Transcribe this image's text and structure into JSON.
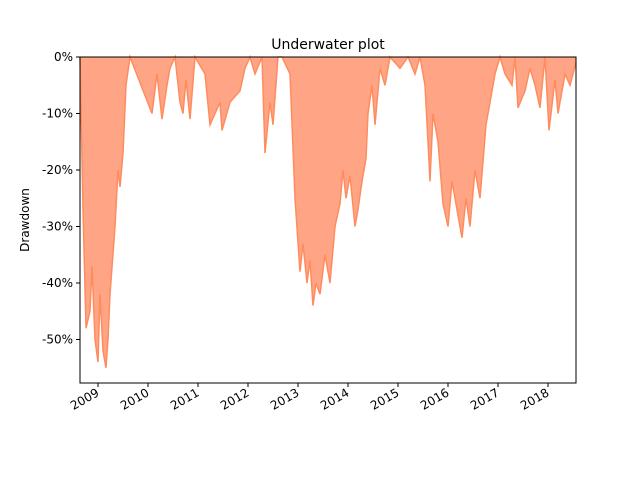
{
  "chart_data": {
    "type": "area",
    "title": "Underwater plot",
    "ylabel": "Drawdown",
    "x": [
      2008.64,
      2008.7,
      2008.76,
      2008.84,
      2008.88,
      2008.94,
      2009.0,
      2009.04,
      2009.1,
      2009.16,
      2009.2,
      2009.24,
      2009.34,
      2009.4,
      2009.44,
      2009.5,
      2009.56,
      2009.64,
      2010.08,
      2010.18,
      2010.28,
      2010.38,
      2010.44,
      2010.54,
      2010.64,
      2010.7,
      2010.76,
      2010.84,
      2010.94,
      2011.14,
      2011.24,
      2011.44,
      2011.48,
      2011.64,
      2011.84,
      2011.94,
      2012.04,
      2012.14,
      2012.28,
      2012.34,
      2012.44,
      2012.5,
      2012.6,
      2012.68,
      2012.84,
      2012.94,
      2013.04,
      2013.1,
      2013.18,
      2013.24,
      2013.3,
      2013.36,
      2013.44,
      2013.54,
      2013.64,
      2013.74,
      2013.84,
      2013.9,
      2013.96,
      2014.04,
      2014.14,
      2014.2,
      2014.28,
      2014.36,
      2014.4,
      2014.48,
      2014.54,
      2014.64,
      2014.74,
      2014.84,
      2015.04,
      2015.2,
      2015.34,
      2015.44,
      2015.54,
      2015.6,
      2015.64,
      2015.7,
      2015.8,
      2015.9,
      2016.0,
      2016.08,
      2016.2,
      2016.28,
      2016.36,
      2016.44,
      2016.54,
      2016.64,
      2016.76,
      2016.84,
      2016.94,
      2017.04,
      2017.14,
      2017.28,
      2017.34,
      2017.4,
      2017.54,
      2017.64,
      2017.74,
      2017.84,
      2017.94,
      2018.02,
      2018.14,
      2018.2,
      2018.34,
      2018.44,
      2018.56
    ],
    "series": [
      {
        "color": "#ff8c5e",
        "fill": "#ffa585",
        "values": [
          0,
          -27,
          -48,
          -45,
          -37,
          -50,
          -54,
          -42,
          -52,
          -55,
          -50,
          -42,
          -30,
          -20,
          -23,
          -17,
          -5,
          0,
          -10,
          -3,
          -11,
          -5,
          -2,
          0,
          -8,
          -10,
          -4,
          -11,
          0,
          -3,
          -12,
          -8,
          -13,
          -8,
          -6,
          -2,
          0,
          -3,
          0,
          -17,
          -8,
          -12,
          0,
          0,
          -3,
          -25,
          -38,
          -33,
          -40,
          -36,
          -44,
          -40,
          -42,
          -35,
          -40,
          -30,
          -26,
          -20,
          -25,
          -21,
          -30,
          -27,
          -22,
          -18,
          -10,
          -5,
          -12,
          -2,
          -5,
          0,
          -2,
          0,
          -3,
          0,
          -5,
          -15,
          -22,
          -10,
          -15,
          -26,
          -30,
          -22,
          -28,
          -32,
          -25,
          -30,
          -20,
          -25,
          -12,
          -8,
          -3,
          0,
          -3,
          -5,
          0,
          -9,
          -6,
          -2,
          -5,
          -9,
          0,
          -13,
          -4,
          -10,
          -3,
          -5,
          -1
        ]
      }
    ],
    "xlim": [
      2008.64,
      2018.56
    ],
    "xticks": [
      2009,
      2010,
      2011,
      2012,
      2013,
      2014,
      2015,
      2016,
      2017,
      2018
    ],
    "ylim": [
      -57.7,
      0
    ],
    "yticks": [
      {
        "value": 0,
        "label": "0%"
      },
      {
        "value": -10,
        "label": "-10%"
      },
      {
        "value": -20,
        "label": "-20%"
      },
      {
        "value": -30,
        "label": "-30%"
      },
      {
        "value": -40,
        "label": "-40%"
      },
      {
        "value": -50,
        "label": "-50%"
      }
    ]
  }
}
